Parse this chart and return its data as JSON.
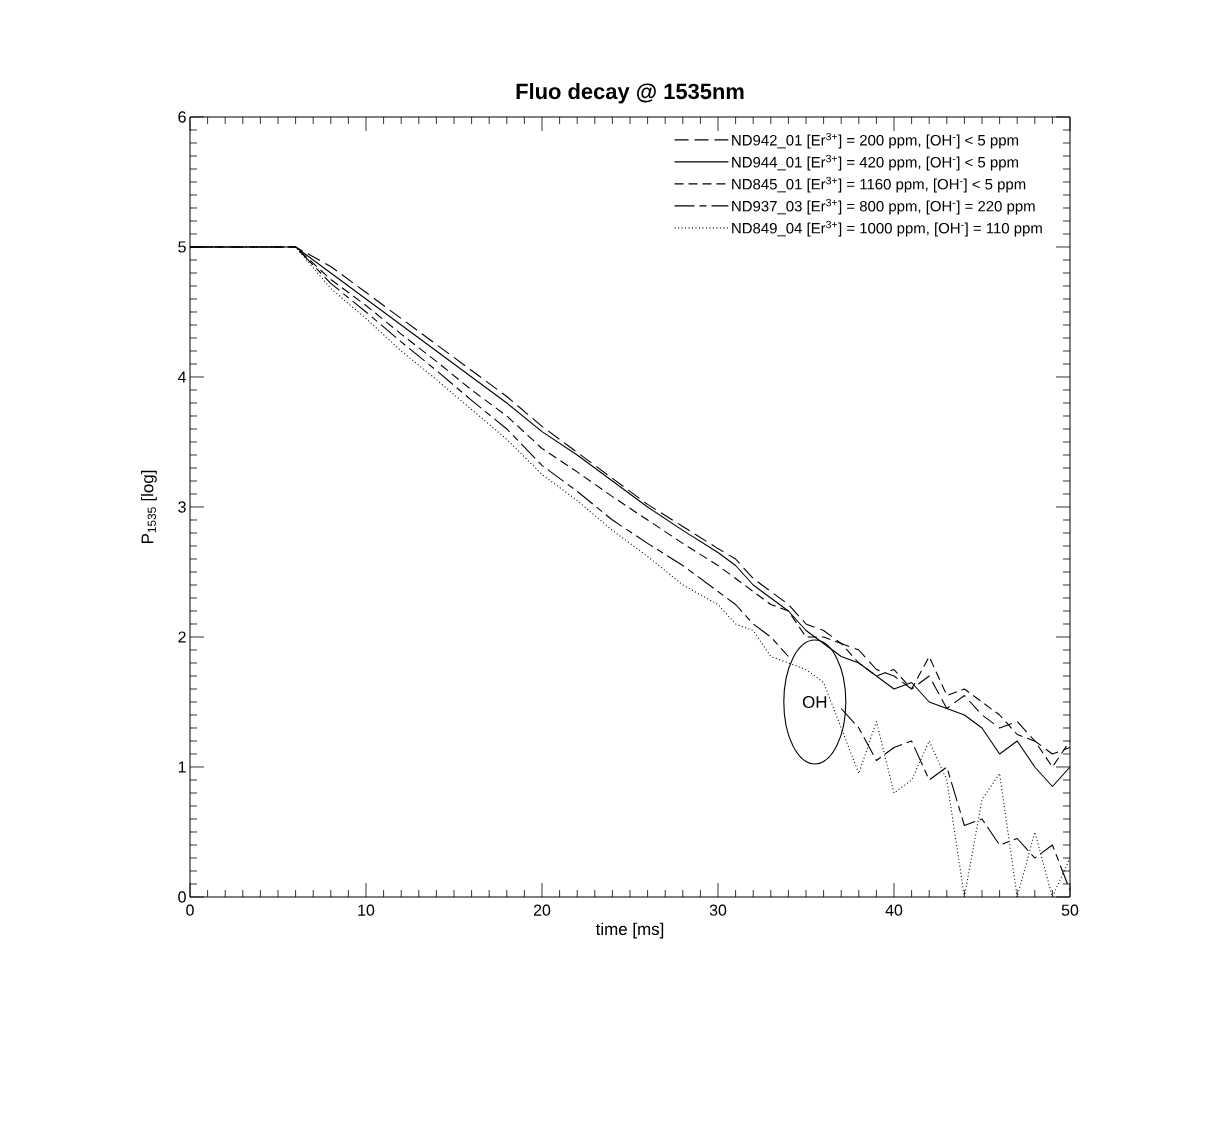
{
  "chart_data": {
    "type": "line",
    "title": "Fluo decay @ 1535nm",
    "xlabel": "time [ms]",
    "ylabel": "P$_{1535}$ [log]",
    "x": [
      0,
      6,
      8,
      10,
      12,
      14,
      16,
      18,
      20,
      22,
      24,
      26,
      28,
      30,
      31,
      32,
      33,
      34,
      35,
      36,
      37,
      38,
      39,
      40,
      41,
      42,
      43,
      44,
      45,
      46,
      47,
      48,
      49,
      50
    ],
    "series": [
      {
        "name": "ND942_01  [Er$^{3+}$] = 200 ppm, [OH$^{-}$] < 5 ppm",
        "color": "#000000",
        "line_style": "dashed",
        "values": [
          5,
          5,
          4.85,
          4.65,
          4.45,
          4.25,
          4.05,
          3.85,
          3.62,
          3.42,
          3.22,
          3.02,
          2.85,
          2.68,
          2.6,
          2.45,
          2.35,
          2.25,
          2.1,
          2.05,
          1.95,
          1.9,
          1.75,
          1.7,
          1.6,
          1.7,
          1.45,
          1.55,
          1.4,
          1.3,
          1.35,
          1.2,
          1.1,
          1.15
        ]
      },
      {
        "name": "ND944_01  [Er$^{3+}$] = 420 ppm, [OH$^{-}$] < 5 ppm",
        "color": "#000000",
        "line_style": "solid",
        "values": [
          5,
          5,
          4.8,
          4.6,
          4.4,
          4.2,
          4.0,
          3.8,
          3.58,
          3.4,
          3.2,
          3.0,
          2.82,
          2.65,
          2.55,
          2.4,
          2.3,
          2.2,
          2.05,
          1.95,
          1.85,
          1.8,
          1.7,
          1.6,
          1.65,
          1.5,
          1.45,
          1.4,
          1.3,
          1.1,
          1.2,
          1.0,
          0.85,
          1.0
        ]
      },
      {
        "name": "ND845_01  [Er$^{3+}$] = 1160 ppm, [OH$^{-}$] < 5 ppm",
        "color": "#000000",
        "line_style": "dashed",
        "values": [
          5,
          5,
          4.75,
          4.55,
          4.33,
          4.12,
          3.9,
          3.7,
          3.45,
          3.27,
          3.08,
          2.9,
          2.72,
          2.55,
          2.45,
          2.35,
          2.25,
          2.2,
          2.0,
          2.0,
          1.95,
          1.8,
          1.7,
          1.75,
          1.6,
          1.85,
          1.55,
          1.6,
          1.5,
          1.4,
          1.25,
          1.2,
          1.0,
          1.2
        ]
      },
      {
        "name": "ND937_03  [Er$^{3+}$] = 800 ppm, [OH$^{-}$] = 220 ppm",
        "color": "#000000",
        "line_style": "dashed",
        "values": [
          5,
          5,
          4.72,
          4.5,
          4.27,
          4.05,
          3.82,
          3.6,
          3.32,
          3.12,
          2.9,
          2.72,
          2.55,
          2.35,
          2.25,
          2.1,
          2.0,
          1.85,
          null,
          null,
          1.45,
          1.3,
          1.05,
          1.15,
          1.2,
          0.9,
          1.0,
          0.55,
          0.6,
          0.4,
          0.45,
          0.3,
          0.4,
          0.05
        ]
      },
      {
        "name": "ND849_04  [Er$^{3+}$] = 1000 ppm, [OH$^{-}$] = 110 ppm",
        "color": "#000000",
        "line_style": "dotted",
        "values": [
          5,
          5,
          4.68,
          4.45,
          4.2,
          3.98,
          3.75,
          3.52,
          3.25,
          3.05,
          2.82,
          2.62,
          2.4,
          2.25,
          2.1,
          2.05,
          1.85,
          1.8,
          1.75,
          1.65,
          1.3,
          0.95,
          1.35,
          0.8,
          0.9,
          1.2,
          0.9,
          0.0,
          0.75,
          0.95,
          0.0,
          0.5,
          0.0,
          0.3
        ]
      }
    ],
    "xlim": [
      0,
      50
    ],
    "xticks": [
      0,
      10,
      20,
      30,
      40,
      50
    ],
    "ylim": [
      0,
      6
    ],
    "yticks": [
      0,
      1,
      2,
      3,
      4,
      5,
      6
    ],
    "legend": "top right",
    "grid": false,
    "annotations": [
      "OH"
    ]
  }
}
